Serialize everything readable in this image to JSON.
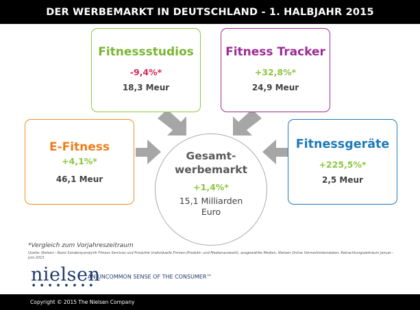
{
  "header": {
    "title": "DER WERBEMARKT IN DEUTSCHLAND - 1. HALBJAHR 2015"
  },
  "segments": {
    "studios": {
      "title": "Fitnessstudios",
      "change": "-9,4%*",
      "value": "18,3 Meur"
    },
    "tracker": {
      "title": "Fitness Tracker",
      "change": "+32,8%*",
      "value": "24,9 Meur"
    },
    "efitness": {
      "title": "E-Fitness",
      "change": "+4,1%*",
      "value": "46,1 Meur"
    },
    "geraete": {
      "title": "Fitnessgeräte",
      "change": "+225,5%*",
      "value": "2,5 Meur"
    }
  },
  "center": {
    "title_line1": "Gesamt-",
    "title_line2": "werbemarkt",
    "change": "+1,4%*",
    "value_line1": "15,1 Milliarden",
    "value_line2": "Euro"
  },
  "note": "*Vergleich zum Vorjahreszeitraum",
  "source": "Quelle: Nielsen - Basis Sonderzyanalytik Fitness Services und Produkte (individuelle Firmen-/Produkt- und Medienauswahl), ausgewählte Medien, Nielsen Online Vormerklisteindaten. Betrachtungszeitraum Januar - Juni 2015",
  "logo": {
    "name": "nielsen",
    "tagline": "AN UNCOMMON SENSE OF THE CONSUMER™"
  },
  "footer": {
    "copyright": "Copyright © 2015 The Nielsen Company"
  },
  "colors": {
    "green": "#8dc63f",
    "purple": "#9b2b93",
    "orange": "#ef8d22",
    "blue": "#1f78b4",
    "red": "#d3275a",
    "arrow": "#a6a6a6"
  }
}
